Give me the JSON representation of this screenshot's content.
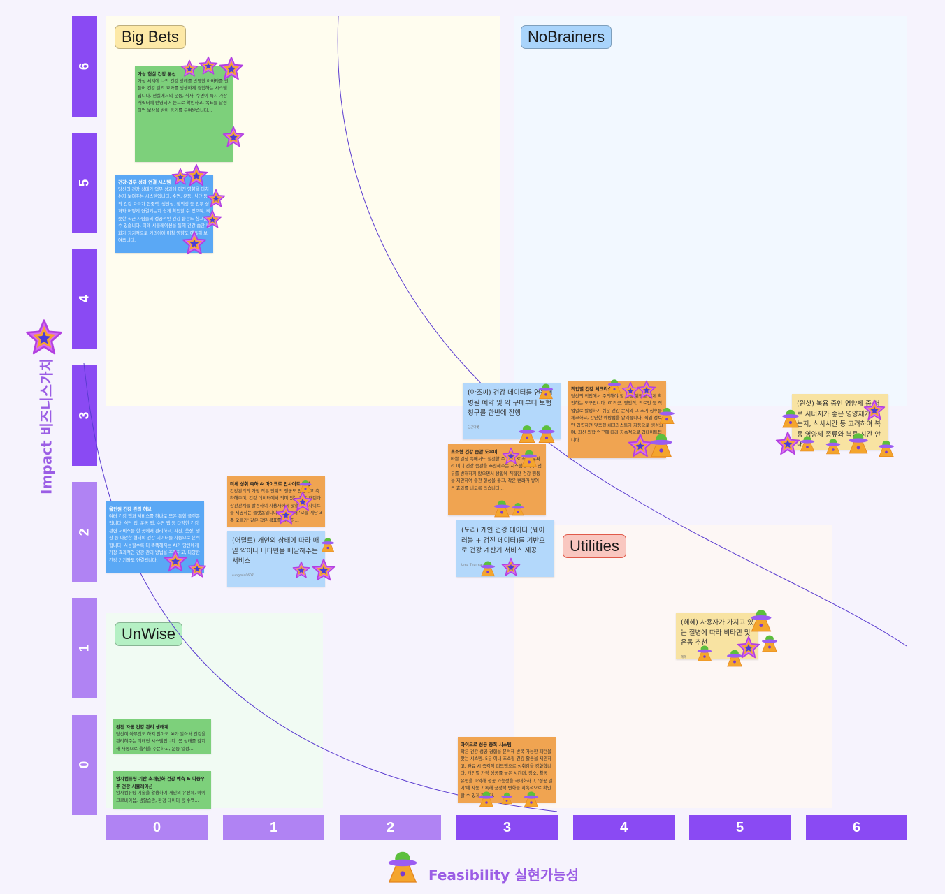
{
  "colors": {
    "axis_dark": "#8a4af3",
    "axis_light": "#b083f3",
    "curve": "#5a3bd0",
    "axis_title": "#9b5de5"
  },
  "y_axis": {
    "title": "Impact 비즈니스가치",
    "ticks": [
      "6",
      "5",
      "4",
      "3",
      "2",
      "1",
      "0"
    ],
    "icon": "star-icon"
  },
  "x_axis": {
    "title": "Feasibility 실현가능성",
    "ticks": [
      "0",
      "1",
      "2",
      "3",
      "4",
      "5",
      "6"
    ],
    "icon": "ufo-icon"
  },
  "quadrants": {
    "big_bets": "Big Bets",
    "no_brainers": "NoBrainers",
    "unwise": "UnWise",
    "utilities": "Utilities"
  },
  "notes": {
    "virtual": {
      "title": "가상 현실 건강 분신",
      "body": "가상 세계에 나의 건강 상태를 반영한 아바타를 만들어 건강 관리 효과를 생생하게 경험하는 시스템입니다. 현실에서의 운동, 식사, 수면이 즉시 가상 캐릭터에 반영되어 눈으로 확인하고, 목표를 달성하면 보상을 받아 동기를 부여받습니다..."
    },
    "work": {
      "title": "건강-업무 성과 연결 시스템",
      "body": "당신의 건강 상태가 업무 성과에 어떤 영향을 미치는지 보여주는 시스템입니다. 수면, 운동, 식단 등의 건강 요소가 집중력, 생산성, 창의성 등 업무 성과와 어떻게 연결되는지 쉽게 확인할 수 있으며, 비슷한 직군 사람들의 성공적인 건강 습관도 참고할 수 있습니다. 미래 시뮬레이션을 통해 건강 습관 변화가 장기적으로 커리어에 미칠 영향도 예측해 보여줍니다."
    },
    "hub": {
      "title": "올인원 건강 관리 허브",
      "body": "여러 건강 앱과 서비스를 하나로 모은 통합 플랫폼입니다. 식단 앱, 운동 앱, 수면 앱 등 다양한 건강 관련 서비스를 한 곳에서 관리하고, 사진, 음성, 영상 등 다양한 형태의 건강 데이터를 자동으로 분석합니다. 사용할수록 더 똑똑해지는 AI가 당신에게 가장 효과적인 건강 관리 방법을 추천하고, 다양한 건강 기기와도 연결됩니다."
    },
    "micro": {
      "title": "미세 성취 축하 & 마이크로 인사이트 발견",
      "body": "건강관리의 가장 작은 단위의 행동도 인정하고 축하해주며, 건강 데이터에서 의미 있는 작은 패턴과 상관관계를 발견하여 사용자에게 맞춤형 인사이트를 제공하는 플랫폼입니다. 예를 들어 '오늘 계단 3층 오르기' 같은 작은 목표를 달성하..."
    },
    "adult": {
      "body": "(어덜트) 개인의 상태에 따라 매일 약이나 비타민을 배달해주는 서비스",
      "author": "sungmin0607"
    },
    "ajo": {
      "body": "(아조씨) 건강 데이터를 연동해 병원 예약 및 약 구매부터 보험 청구를 한번에 진행",
      "author": "당근마켓"
    },
    "job": {
      "title": "직업별 건강 체크리스트",
      "body": "당신의 직업에서 주의해야 할 건강 위험을 쉽게 확인하는 도구입니다. IT 직군, 영업직, 의료인 등 직업별로 발생하기 쉬운 건강 문제와 그 초기 징후를 체크하고, 간단한 예방법을 알려줍니다. 직업 정보만 입력하면 맞춤형 체크리스트가 자동으로 생성되며, 최신 의학 연구에 따라 지속적으로 업데이트됩니다."
    },
    "tiny": {
      "title": "초소형 건강 습관 도우미",
      "body": "바쁜 일상 속에서도 실천할 수 있는 30초~2분짜리 미니 건강 습관을 추천해주는 시스템입니다. 업무를 방해하지 않으면서 상황에 적합한 건강 행동을 제안하여 습관 형성을 돕고, 작은 변화가 쌓여 큰 효과를 내도록 돕습니다..."
    },
    "dori": {
      "body": "(도리) 개인 건강 데이터 (웨어러블 + 검진 데이터)를 기반으로 건강 계산기 서비스 제공",
      "author": "Uma Thurman"
    },
    "wonsh": {
      "body": "(원샷) 복용 중인 영양제 중 서로 시너지가 좋은 영양제가 있는지, 식사시간 등 고려하여 복용 영양제 종류와 복용 시간 안내",
      "author": "원샷"
    },
    "hyehye": {
      "body": "(혜혜) 사용자가 가지고 있는 질병에 따라 비타민 및 운동 추천",
      "author": "혜혜"
    },
    "auto": {
      "title": "완전 자동 건강 관리 생태계",
      "body": "당신이 아무것도 하지 않아도 AI가 알아서 건강을 관리해주는 미래형 시스템입니다. 몸 상태를 감지해 자동으로 음식을 주문하고, 운동 일정..."
    },
    "quantum": {
      "title": "양자컴퓨팅 기반 초개인화 건강 예측 & 다중우주 건강 시뮬레이션",
      "body": "양자컴퓨팅 기술을 활용하여 개인의 유전체, 마이크로바이옴, 생활습관, 환경 데이터 등 수백..."
    },
    "success": {
      "title": "마이크로 성공 증폭 시스템",
      "body": "작은 건강 성공 경험을 분석해 반복 가능한 패턴을 찾는 시스템. 5분 이내 초소형 건강 활동을 제안하고, 완료 시 즉각적 피드백으로 성취감을 강화합니다. 개인별 가장 성공률 높은 시간대, 장소, 활동 유형을 파악해 성공 가능성을 극대화하고, '성공 일기'에 자동 기록해 긍정적 변화를 지속적으로 확인할 수 있게 합니다."
    }
  }
}
